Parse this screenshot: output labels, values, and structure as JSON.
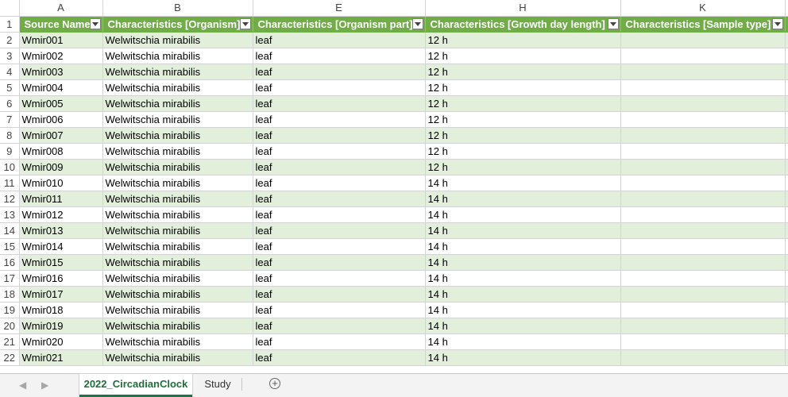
{
  "grid": {
    "column_letters": [
      "A",
      "B",
      "E",
      "H",
      "K"
    ],
    "header_row_number": "1",
    "headers": [
      "Source Name",
      "Characteristics [Organism]",
      "Characteristics [Organism part]",
      "Characteristics [Growth day length]",
      "Characteristics [Sample type]"
    ],
    "rows": [
      {
        "n": "2",
        "cells": [
          "Wmir001",
          "Welwitschia mirabilis",
          "leaf",
          "12 h",
          ""
        ]
      },
      {
        "n": "3",
        "cells": [
          "Wmir002",
          "Welwitschia mirabilis",
          "leaf",
          "12 h",
          ""
        ]
      },
      {
        "n": "4",
        "cells": [
          "Wmir003",
          "Welwitschia mirabilis",
          "leaf",
          "12 h",
          ""
        ]
      },
      {
        "n": "5",
        "cells": [
          "Wmir004",
          "Welwitschia mirabilis",
          "leaf",
          "12 h",
          ""
        ]
      },
      {
        "n": "6",
        "cells": [
          "Wmir005",
          "Welwitschia mirabilis",
          "leaf",
          "12 h",
          ""
        ]
      },
      {
        "n": "7",
        "cells": [
          "Wmir006",
          "Welwitschia mirabilis",
          "leaf",
          "12 h",
          ""
        ]
      },
      {
        "n": "8",
        "cells": [
          "Wmir007",
          "Welwitschia mirabilis",
          "leaf",
          "12 h",
          ""
        ]
      },
      {
        "n": "9",
        "cells": [
          "Wmir008",
          "Welwitschia mirabilis",
          "leaf",
          "12 h",
          ""
        ]
      },
      {
        "n": "10",
        "cells": [
          "Wmir009",
          "Welwitschia mirabilis",
          "leaf",
          "12 h",
          ""
        ]
      },
      {
        "n": "11",
        "cells": [
          "Wmir010",
          "Welwitschia mirabilis",
          "leaf",
          "14 h",
          ""
        ]
      },
      {
        "n": "12",
        "cells": [
          "Wmir011",
          "Welwitschia mirabilis",
          "leaf",
          "14 h",
          ""
        ]
      },
      {
        "n": "13",
        "cells": [
          "Wmir012",
          "Welwitschia mirabilis",
          "leaf",
          "14 h",
          ""
        ]
      },
      {
        "n": "14",
        "cells": [
          "Wmir013",
          "Welwitschia mirabilis",
          "leaf",
          "14 h",
          ""
        ]
      },
      {
        "n": "15",
        "cells": [
          "Wmir014",
          "Welwitschia mirabilis",
          "leaf",
          "14 h",
          ""
        ]
      },
      {
        "n": "16",
        "cells": [
          "Wmir015",
          "Welwitschia mirabilis",
          "leaf",
          "14 h",
          ""
        ]
      },
      {
        "n": "17",
        "cells": [
          "Wmir016",
          "Welwitschia mirabilis",
          "leaf",
          "14 h",
          ""
        ]
      },
      {
        "n": "18",
        "cells": [
          "Wmir017",
          "Welwitschia mirabilis",
          "leaf",
          "14 h",
          ""
        ]
      },
      {
        "n": "19",
        "cells": [
          "Wmir018",
          "Welwitschia mirabilis",
          "leaf",
          "14 h",
          ""
        ]
      },
      {
        "n": "20",
        "cells": [
          "Wmir019",
          "Welwitschia mirabilis",
          "leaf",
          "14 h",
          ""
        ]
      },
      {
        "n": "21",
        "cells": [
          "Wmir020",
          "Welwitschia mirabilis",
          "leaf",
          "14 h",
          ""
        ]
      },
      {
        "n": "22",
        "cells": [
          "Wmir021",
          "Welwitschia mirabilis",
          "leaf",
          "14 h",
          ""
        ]
      }
    ]
  },
  "tabs": {
    "sheets": [
      "2022_CircadianClock",
      "Study"
    ],
    "active_sheet": "2022_CircadianClock",
    "add_icon": "plus-circle-icon",
    "prev_icon": "chevron-left-icon",
    "next_icon": "chevron-right-icon"
  },
  "colors": {
    "header_green": "#70ad47",
    "band_green": "#e2efda",
    "active_tab_text": "#1e6e3a"
  }
}
